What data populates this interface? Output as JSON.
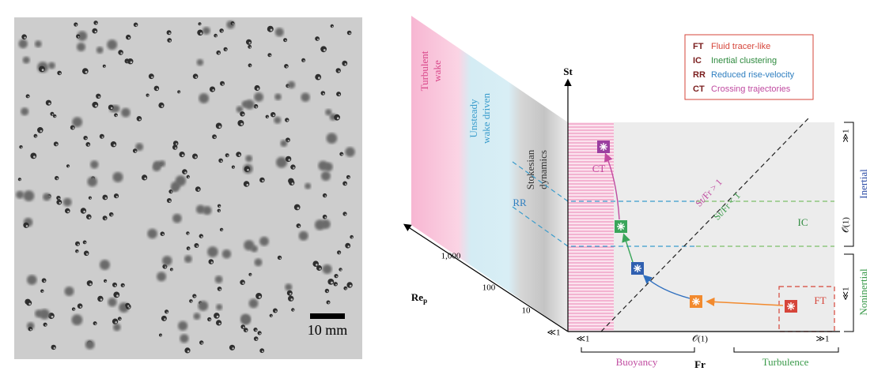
{
  "panel_a": {
    "scale_bar_label": "10 mm"
  },
  "panel_b": {
    "legend": [
      {
        "abbr": "FT",
        "label": "Fluid tracer-like"
      },
      {
        "abbr": "IC",
        "label": "Inertial clustering"
      },
      {
        "abbr": "RR",
        "label": "Reduced rise-velocity"
      },
      {
        "abbr": "CT",
        "label": "Crossing trajectories"
      }
    ],
    "y_axis_label": "St",
    "x_axis_label": "Fr",
    "x_ticks": [
      "≪1",
      "𝒪(1)",
      "≫1"
    ],
    "x_brackets": [
      "Buoyancy",
      "Turbulence"
    ],
    "y_ticks": [
      "≫1",
      "𝒪(1)",
      "≪1"
    ],
    "y_brackets": [
      "Inertial",
      "Noninertial"
    ],
    "depth_axis_label": {
      "main": "Re",
      "sub": "p"
    },
    "depth_ticks": [
      "1,000",
      "100",
      "10",
      "≪1"
    ],
    "wake_regions": [
      [
        "Turbulent",
        "wake"
      ],
      [
        "Unsteady",
        "wake driven"
      ],
      [
        "Stokesian",
        "dynamics"
      ]
    ],
    "region_labels": {
      "ct": "CT",
      "rr": "RR",
      "ic": "IC",
      "ft": "FT"
    },
    "diagonal_labels": [
      "St/Fr > 1",
      "St/Fr < 1"
    ]
  }
}
